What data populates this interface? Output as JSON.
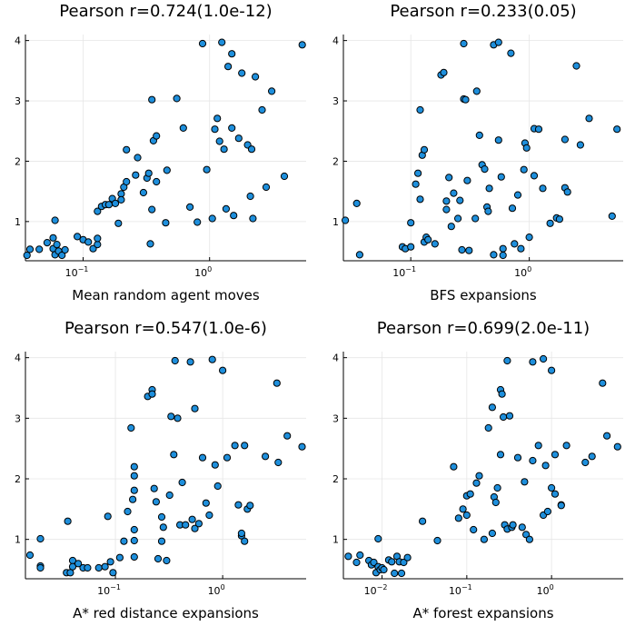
{
  "chart_data": [
    {
      "type": "scatter",
      "title": "Pearson r=0.724(1.0e-12)",
      "xlabel": "Mean random agent moves",
      "ylabel": "",
      "xscale": "log",
      "xlim": [
        0.035,
        5.8
      ],
      "ylim": [
        0.35,
        4.1
      ],
      "xticks": [
        {
          "value": 0.1,
          "base": "10",
          "exp": "−1"
        },
        {
          "value": 1,
          "base": "10",
          "exp": "0"
        }
      ],
      "yticks": [
        1,
        2,
        3,
        4
      ],
      "grid": true,
      "points": [
        [
          0.036,
          0.44
        ],
        [
          0.038,
          0.54
        ],
        [
          0.045,
          0.54
        ],
        [
          0.052,
          0.65
        ],
        [
          0.058,
          0.73
        ],
        [
          0.058,
          0.55
        ],
        [
          0.06,
          0.45
        ],
        [
          0.06,
          1.02
        ],
        [
          0.062,
          0.62
        ],
        [
          0.064,
          0.51
        ],
        [
          0.068,
          0.44
        ],
        [
          0.072,
          0.53
        ],
        [
          0.09,
          0.75
        ],
        [
          0.1,
          0.7
        ],
        [
          0.11,
          0.66
        ],
        [
          0.12,
          0.55
        ],
        [
          0.13,
          0.62
        ],
        [
          0.13,
          0.72
        ],
        [
          0.13,
          1.17
        ],
        [
          0.14,
          1.25
        ],
        [
          0.15,
          1.28
        ],
        [
          0.16,
          1.28
        ],
        [
          0.17,
          1.38
        ],
        [
          0.18,
          1.3
        ],
        [
          0.19,
          0.97
        ],
        [
          0.2,
          1.46
        ],
        [
          0.2,
          1.36
        ],
        [
          0.21,
          1.57
        ],
        [
          0.22,
          1.66
        ],
        [
          0.22,
          2.19
        ],
        [
          0.26,
          1.77
        ],
        [
          0.27,
          2.06
        ],
        [
          0.3,
          1.48
        ],
        [
          0.32,
          1.72
        ],
        [
          0.33,
          1.8
        ],
        [
          0.34,
          0.63
        ],
        [
          0.35,
          1.2
        ],
        [
          0.36,
          2.34
        ],
        [
          0.38,
          2.42
        ],
        [
          0.38,
          1.66
        ],
        [
          0.35,
          3.02
        ],
        [
          0.46,
          1.85
        ],
        [
          0.45,
          0.98
        ],
        [
          0.55,
          3.04
        ],
        [
          0.62,
          2.55
        ],
        [
          0.7,
          1.24
        ],
        [
          0.8,
          0.99
        ],
        [
          0.88,
          3.95
        ],
        [
          0.95,
          1.86
        ],
        [
          1.05,
          1.05
        ],
        [
          1.1,
          2.53
        ],
        [
          1.15,
          2.71
        ],
        [
          1.2,
          2.33
        ],
        [
          1.25,
          3.97
        ],
        [
          1.3,
          2.2
        ],
        [
          1.35,
          1.21
        ],
        [
          1.4,
          3.57
        ],
        [
          1.5,
          2.55
        ],
        [
          1.5,
          3.78
        ],
        [
          1.55,
          1.1
        ],
        [
          1.7,
          2.38
        ],
        [
          1.8,
          3.46
        ],
        [
          2.0,
          2.27
        ],
        [
          2.1,
          1.42
        ],
        [
          2.15,
          2.2
        ],
        [
          2.2,
          1.05
        ],
        [
          2.3,
          3.4
        ],
        [
          2.6,
          2.85
        ],
        [
          2.8,
          1.57
        ],
        [
          3.1,
          3.16
        ],
        [
          3.9,
          1.75
        ],
        [
          5.4,
          3.93
        ]
      ]
    },
    {
      "type": "scatter",
      "title": "Pearson r=0.233(0.05)",
      "xlabel": "BFS expansions",
      "ylabel": "",
      "xscale": "log",
      "xlim": [
        0.027,
        6.2
      ],
      "ylim": [
        0.35,
        4.1
      ],
      "xticks": [
        {
          "value": 0.1,
          "base": "10",
          "exp": "−1"
        },
        {
          "value": 1,
          "base": "10",
          "exp": "0"
        }
      ],
      "yticks": [
        1,
        2,
        3,
        4
      ],
      "grid": true,
      "points": [
        [
          0.028,
          1.02
        ],
        [
          0.035,
          1.3
        ],
        [
          0.037,
          0.45
        ],
        [
          0.085,
          0.58
        ],
        [
          0.09,
          0.55
        ],
        [
          0.1,
          0.58
        ],
        [
          0.1,
          0.98
        ],
        [
          0.11,
          1.62
        ],
        [
          0.115,
          1.8
        ],
        [
          0.12,
          2.85
        ],
        [
          0.12,
          1.37
        ],
        [
          0.125,
          2.1
        ],
        [
          0.13,
          2.19
        ],
        [
          0.13,
          0.66
        ],
        [
          0.135,
          0.74
        ],
        [
          0.14,
          0.7
        ],
        [
          0.16,
          0.63
        ],
        [
          0.18,
          3.43
        ],
        [
          0.19,
          3.47
        ],
        [
          0.2,
          1.2
        ],
        [
          0.2,
          1.34
        ],
        [
          0.21,
          1.73
        ],
        [
          0.22,
          0.92
        ],
        [
          0.23,
          1.47
        ],
        [
          0.25,
          1.05
        ],
        [
          0.26,
          1.35
        ],
        [
          0.27,
          0.53
        ],
        [
          0.28,
          3.95
        ],
        [
          0.28,
          3.03
        ],
        [
          0.29,
          3.02
        ],
        [
          0.3,
          1.68
        ],
        [
          0.31,
          0.52
        ],
        [
          0.35,
          1.05
        ],
        [
          0.36,
          3.16
        ],
        [
          0.38,
          2.43
        ],
        [
          0.4,
          1.94
        ],
        [
          0.42,
          1.87
        ],
        [
          0.44,
          1.24
        ],
        [
          0.45,
          1.17
        ],
        [
          0.46,
          1.55
        ],
        [
          0.5,
          3.93
        ],
        [
          0.5,
          0.45
        ],
        [
          0.55,
          3.97
        ],
        [
          0.55,
          2.35
        ],
        [
          0.58,
          1.74
        ],
        [
          0.6,
          0.44
        ],
        [
          0.6,
          0.55
        ],
        [
          0.7,
          3.79
        ],
        [
          0.72,
          1.22
        ],
        [
          0.75,
          0.63
        ],
        [
          0.8,
          1.44
        ],
        [
          0.85,
          0.55
        ],
        [
          0.9,
          1.86
        ],
        [
          0.92,
          2.3
        ],
        [
          0.95,
          2.22
        ],
        [
          1.0,
          0.74
        ],
        [
          1.1,
          1.76
        ],
        [
          1.1,
          2.54
        ],
        [
          1.2,
          2.53
        ],
        [
          1.3,
          1.55
        ],
        [
          1.5,
          0.97
        ],
        [
          1.7,
          1.06
        ],
        [
          1.8,
          1.04
        ],
        [
          2.0,
          2.36
        ],
        [
          2.0,
          1.56
        ],
        [
          2.1,
          1.49
        ],
        [
          2.5,
          3.58
        ],
        [
          2.7,
          2.27
        ],
        [
          3.2,
          2.71
        ],
        [
          5.0,
          1.09
        ],
        [
          5.5,
          2.53
        ]
      ]
    },
    {
      "type": "scatter",
      "title": "Pearson r=0.547(1.0e-6)",
      "xlabel": "A* red distance expansions",
      "ylabel": "",
      "xscale": "log",
      "xlim": [
        0.0145,
        6.0
      ],
      "ylim": [
        0.35,
        4.1
      ],
      "xticks": [
        {
          "value": 0.1,
          "base": "10",
          "exp": "−1"
        },
        {
          "value": 1,
          "base": "10",
          "exp": "0"
        }
      ],
      "yticks": [
        1,
        2,
        3,
        4
      ],
      "grid": true,
      "points": [
        [
          0.016,
          0.74
        ],
        [
          0.02,
          0.56
        ],
        [
          0.02,
          0.53
        ],
        [
          0.02,
          1.01
        ],
        [
          0.035,
          0.45
        ],
        [
          0.036,
          1.3
        ],
        [
          0.038,
          0.45
        ],
        [
          0.04,
          0.65
        ],
        [
          0.04,
          0.55
        ],
        [
          0.045,
          0.6
        ],
        [
          0.05,
          0.53
        ],
        [
          0.055,
          0.53
        ],
        [
          0.07,
          0.53
        ],
        [
          0.08,
          0.55
        ],
        [
          0.085,
          1.38
        ],
        [
          0.09,
          0.63
        ],
        [
          0.095,
          0.45
        ],
        [
          0.11,
          0.7
        ],
        [
          0.12,
          0.97
        ],
        [
          0.13,
          1.46
        ],
        [
          0.14,
          2.84
        ],
        [
          0.145,
          1.66
        ],
        [
          0.15,
          1.81
        ],
        [
          0.15,
          2.2
        ],
        [
          0.15,
          2.05
        ],
        [
          0.15,
          1.16
        ],
        [
          0.15,
          0.98
        ],
        [
          0.15,
          0.71
        ],
        [
          0.2,
          3.36
        ],
        [
          0.22,
          3.47
        ],
        [
          0.22,
          3.4
        ],
        [
          0.23,
          1.84
        ],
        [
          0.24,
          1.62
        ],
        [
          0.25,
          0.68
        ],
        [
          0.27,
          0.97
        ],
        [
          0.27,
          1.37
        ],
        [
          0.28,
          1.2
        ],
        [
          0.3,
          0.65
        ],
        [
          0.32,
          1.73
        ],
        [
          0.33,
          3.03
        ],
        [
          0.35,
          2.4
        ],
        [
          0.36,
          3.95
        ],
        [
          0.38,
          3.0
        ],
        [
          0.4,
          1.24
        ],
        [
          0.42,
          1.94
        ],
        [
          0.45,
          1.24
        ],
        [
          0.5,
          3.93
        ],
        [
          0.52,
          1.33
        ],
        [
          0.55,
          1.18
        ],
        [
          0.55,
          3.16
        ],
        [
          0.6,
          1.26
        ],
        [
          0.65,
          2.35
        ],
        [
          0.7,
          1.6
        ],
        [
          0.75,
          1.4
        ],
        [
          0.8,
          3.97
        ],
        [
          0.85,
          2.23
        ],
        [
          0.9,
          1.88
        ],
        [
          1.0,
          3.79
        ],
        [
          1.1,
          2.35
        ],
        [
          1.3,
          2.55
        ],
        [
          1.4,
          1.57
        ],
        [
          1.5,
          1.06
        ],
        [
          1.5,
          1.1
        ],
        [
          1.6,
          2.55
        ],
        [
          1.6,
          0.97
        ],
        [
          1.7,
          1.5
        ],
        [
          1.8,
          1.56
        ],
        [
          2.5,
          2.37
        ],
        [
          3.2,
          3.58
        ],
        [
          3.3,
          2.27
        ],
        [
          4.0,
          2.71
        ],
        [
          5.5,
          2.53
        ]
      ]
    },
    {
      "type": "scatter",
      "title": "Pearson r=0.699(2.0e-11)",
      "xlabel": "A* forest expansions",
      "ylabel": "",
      "xscale": "log",
      "xlim": [
        0.0035,
        7.0
      ],
      "ylim": [
        0.35,
        4.1
      ],
      "xticks": [
        {
          "value": 0.01,
          "base": "10",
          "exp": "−2"
        },
        {
          "value": 0.1,
          "base": "10",
          "exp": "−1"
        },
        {
          "value": 1,
          "base": "10",
          "exp": "0"
        }
      ],
      "yticks": [
        1,
        2,
        3,
        4
      ],
      "grid": true,
      "points": [
        [
          0.004,
          0.72
        ],
        [
          0.005,
          0.62
        ],
        [
          0.0055,
          0.74
        ],
        [
          0.007,
          0.65
        ],
        [
          0.0075,
          0.58
        ],
        [
          0.008,
          0.62
        ],
        [
          0.0085,
          0.45
        ],
        [
          0.009,
          1.01
        ],
        [
          0.009,
          0.55
        ],
        [
          0.0095,
          0.5
        ],
        [
          0.01,
          0.53
        ],
        [
          0.0105,
          0.5
        ],
        [
          0.012,
          0.66
        ],
        [
          0.013,
          0.63
        ],
        [
          0.014,
          0.44
        ],
        [
          0.015,
          0.72
        ],
        [
          0.016,
          0.63
        ],
        [
          0.017,
          0.44
        ],
        [
          0.018,
          0.62
        ],
        [
          0.02,
          0.7
        ],
        [
          0.03,
          1.3
        ],
        [
          0.045,
          0.98
        ],
        [
          0.07,
          2.2
        ],
        [
          0.08,
          1.35
        ],
        [
          0.09,
          1.5
        ],
        [
          0.1,
          1.4
        ],
        [
          0.1,
          1.72
        ],
        [
          0.11,
          1.75
        ],
        [
          0.12,
          1.16
        ],
        [
          0.13,
          1.93
        ],
        [
          0.14,
          2.05
        ],
        [
          0.16,
          1.0
        ],
        [
          0.18,
          2.84
        ],
        [
          0.2,
          1.1
        ],
        [
          0.2,
          3.18
        ],
        [
          0.21,
          1.7
        ],
        [
          0.22,
          1.61
        ],
        [
          0.23,
          1.85
        ],
        [
          0.25,
          2.4
        ],
        [
          0.25,
          3.47
        ],
        [
          0.26,
          3.4
        ],
        [
          0.27,
          3.02
        ],
        [
          0.28,
          1.24
        ],
        [
          0.3,
          1.17
        ],
        [
          0.3,
          3.95
        ],
        [
          0.32,
          3.04
        ],
        [
          0.34,
          1.2
        ],
        [
          0.35,
          1.24
        ],
        [
          0.4,
          2.35
        ],
        [
          0.45,
          1.2
        ],
        [
          0.48,
          1.95
        ],
        [
          0.5,
          1.08
        ],
        [
          0.55,
          1.0
        ],
        [
          0.6,
          2.3
        ],
        [
          0.6,
          3.93
        ],
        [
          0.7,
          2.55
        ],
        [
          0.8,
          3.98
        ],
        [
          0.8,
          1.4
        ],
        [
          0.85,
          2.22
        ],
        [
          0.9,
          1.46
        ],
        [
          1.0,
          3.79
        ],
        [
          1.0,
          1.85
        ],
        [
          1.1,
          2.4
        ],
        [
          1.1,
          1.75
        ],
        [
          1.3,
          1.57
        ],
        [
          1.3,
          1.56
        ],
        [
          1.5,
          2.55
        ],
        [
          2.5,
          2.27
        ],
        [
          3.0,
          2.37
        ],
        [
          4.0,
          3.58
        ],
        [
          4.5,
          2.71
        ],
        [
          6.0,
          2.53
        ]
      ]
    }
  ]
}
